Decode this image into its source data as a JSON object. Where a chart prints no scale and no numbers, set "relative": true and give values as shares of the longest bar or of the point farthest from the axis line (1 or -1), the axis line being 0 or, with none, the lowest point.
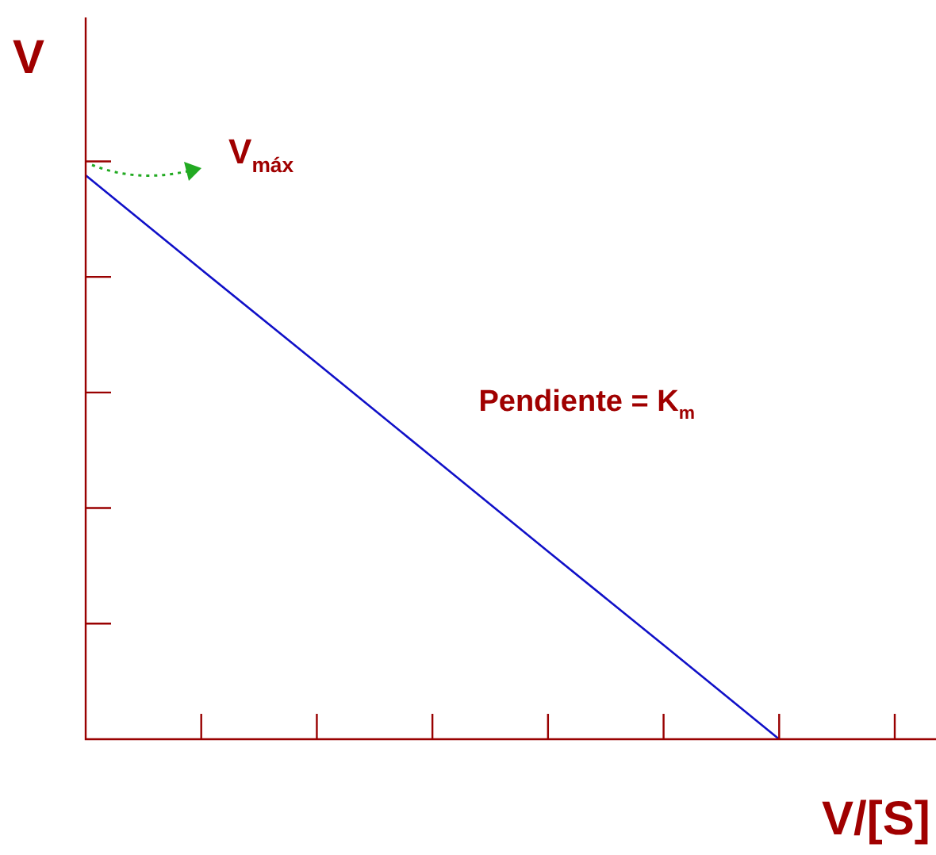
{
  "chart_data": {
    "type": "line",
    "relative": true,
    "xlabel": "V/[S]",
    "ylabel": "V",
    "categories": [
      null,
      null,
      null,
      null,
      null,
      null,
      null,
      null
    ],
    "series": [
      {
        "color": "#1010c8",
        "values": [
          1,
          0.833,
          0.667,
          0.5,
          0.333,
          0.167,
          0,
          null
        ]
      }
    ],
    "annotations": [
      "V$_{máx}$",
      "Pendiente = K$_{m}$"
    ],
    "legend": false,
    "marker": "none"
  }
}
